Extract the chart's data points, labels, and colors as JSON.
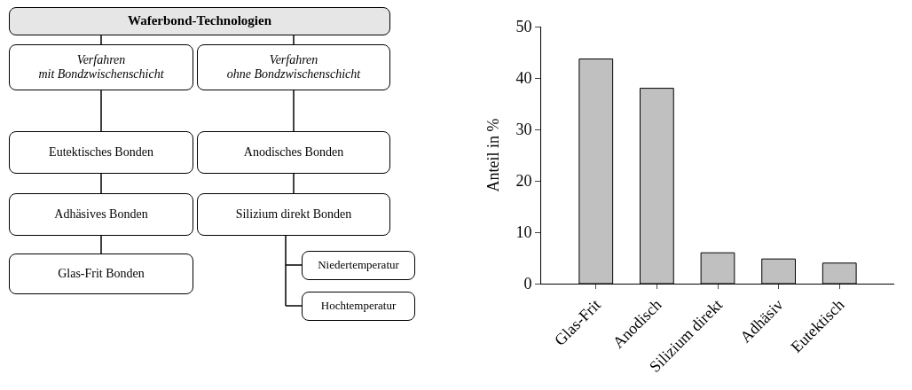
{
  "chart_data": [
    {
      "type": "other",
      "title": "Waferbond-Technologien",
      "annotations": [
        "Verfahren\nmit Bondzwischenschicht",
        "Verfahren\nohne Bondzwischenschicht",
        "Eutektisches Bonden",
        "Anodisches  Bonden",
        "Adhäsives Bonden",
        "Silizium direkt Bonden",
        "Glas-Frit Bonden",
        "Niedertemperatur",
        "Hochtemperatur"
      ]
    },
    {
      "type": "bar",
      "categories": [
        "Glas-Frit",
        "Anodisch",
        "Silizium direkt",
        "Adhäsiv",
        "Eutektisch"
      ],
      "values": [
        43.7,
        38,
        6,
        4.8,
        4
      ],
      "color": "#c0c0c0",
      "ylabel": "Anteil in %",
      "ylim": [
        0,
        50
      ],
      "yticks": [
        0,
        10,
        20,
        30,
        40,
        50
      ],
      "grid": false
    }
  ]
}
